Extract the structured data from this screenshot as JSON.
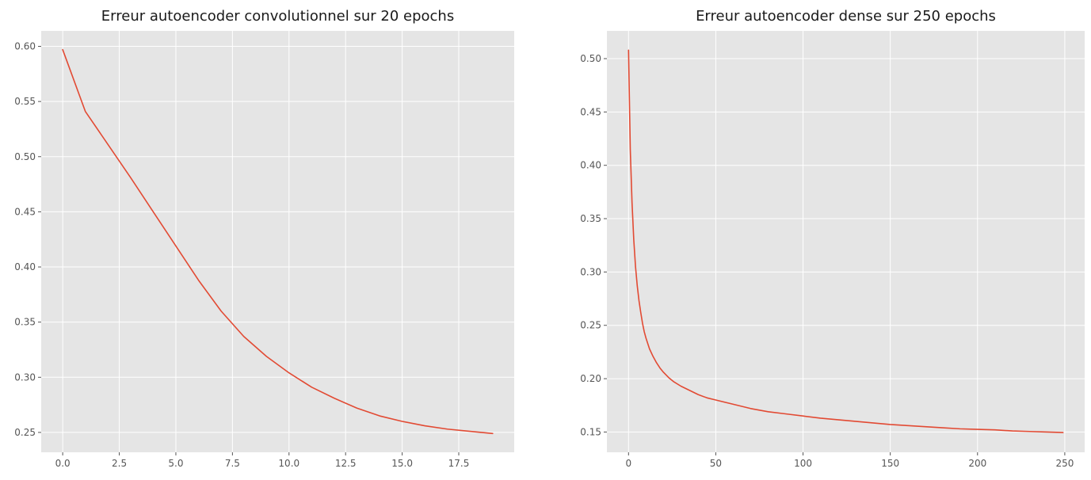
{
  "chart_data": [
    {
      "type": "line",
      "title": "Erreur autoencoder convolutionnel sur 20 epochs",
      "xlabel": "",
      "ylabel": "",
      "xlim": [
        -0.95,
        19.95
      ],
      "ylim": [
        0.232,
        0.614
      ],
      "xticks": [
        0.0,
        2.5,
        5.0,
        7.5,
        10.0,
        12.5,
        15.0,
        17.5
      ],
      "xtick_labels": [
        "0.0",
        "2.5",
        "5.0",
        "7.5",
        "10.0",
        "12.5",
        "15.0",
        "17.5"
      ],
      "yticks": [
        0.25,
        0.3,
        0.35,
        0.4,
        0.45,
        0.5,
        0.55,
        0.6
      ],
      "ytick_labels": [
        "0.25",
        "0.30",
        "0.35",
        "0.40",
        "0.45",
        "0.50",
        "0.55",
        "0.60"
      ],
      "grid": true,
      "color": "#e24a33",
      "x": [
        0,
        1,
        2,
        3,
        4,
        5,
        6,
        7,
        8,
        9,
        10,
        11,
        12,
        13,
        14,
        15,
        16,
        17,
        18,
        19
      ],
      "y": [
        0.597,
        0.541,
        0.511,
        0.481,
        0.45,
        0.419,
        0.388,
        0.36,
        0.337,
        0.319,
        0.304,
        0.291,
        0.281,
        0.272,
        0.265,
        0.26,
        0.256,
        0.253,
        0.251,
        0.249
      ]
    },
    {
      "type": "line",
      "title": "Erreur autoencoder dense sur 250 epochs",
      "xlabel": "",
      "ylabel": "",
      "xlim": [
        -12.4,
        261.4
      ],
      "ylim": [
        0.131,
        0.526
      ],
      "xticks": [
        0,
        50,
        100,
        150,
        200,
        250
      ],
      "xtick_labels": [
        "0",
        "50",
        "100",
        "150",
        "200",
        "250"
      ],
      "yticks": [
        0.15,
        0.2,
        0.25,
        0.3,
        0.35,
        0.4,
        0.45,
        0.5
      ],
      "ytick_labels": [
        "0.15",
        "0.20",
        "0.25",
        "0.30",
        "0.35",
        "0.40",
        "0.45",
        "0.50"
      ],
      "grid": true,
      "color": "#e24a33",
      "x": [
        0,
        1,
        2,
        3,
        4,
        5,
        6,
        7,
        8,
        9,
        10,
        12,
        14,
        16,
        18,
        20,
        23,
        26,
        30,
        35,
        40,
        45,
        50,
        60,
        70,
        80,
        90,
        100,
        110,
        120,
        130,
        140,
        150,
        160,
        170,
        180,
        190,
        200,
        210,
        220,
        230,
        240,
        249
      ],
      "y": [
        0.508,
        0.415,
        0.365,
        0.33,
        0.305,
        0.287,
        0.273,
        0.262,
        0.252,
        0.244,
        0.238,
        0.228,
        0.221,
        0.215,
        0.21,
        0.206,
        0.201,
        0.197,
        0.193,
        0.189,
        0.185,
        0.182,
        0.18,
        0.176,
        0.172,
        0.169,
        0.167,
        0.165,
        0.163,
        0.1615,
        0.16,
        0.1585,
        0.157,
        0.156,
        0.155,
        0.154,
        0.153,
        0.1525,
        0.152,
        0.151,
        0.1505,
        0.15,
        0.1495
      ]
    }
  ]
}
